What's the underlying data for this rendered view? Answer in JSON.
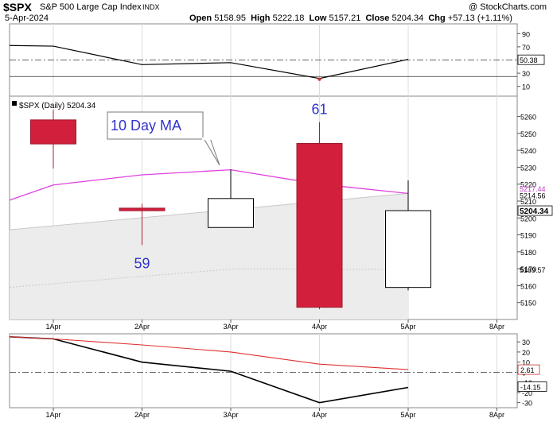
{
  "header": {
    "symbol": "$SPX",
    "name": "S&P 500 Large Cap Index",
    "exchange": "INDX",
    "date": "5-Apr-2024",
    "copyright": "@ StockCharts.com",
    "open_label": "Open",
    "open_value": "5158.95",
    "high_label": "High",
    "high_value": "5222.18",
    "low_label": "Low",
    "low_value": "5157.21",
    "close_label": "Close",
    "close_value": "5204.34",
    "chg_label": "Chg",
    "chg_value": "+57.13 (+1.11%)"
  },
  "chart_data": [
    {
      "type": "line",
      "panel": "top-indicator",
      "x": [
        "1Apr",
        "2Apr",
        "3Apr",
        "4Apr",
        "5Apr"
      ],
      "series": [
        {
          "values": [
            71,
            43,
            46,
            22,
            51
          ],
          "color": "#000000"
        }
      ],
      "ylim": [
        0,
        100
      ],
      "yticks": [
        10,
        30,
        50,
        70,
        90
      ],
      "reference_lines": [
        {
          "value": 50,
          "style": "dash-dot"
        },
        {
          "value": 25,
          "style": "solid"
        }
      ],
      "last_value_label": "50.38"
    },
    {
      "type": "candlestick",
      "panel": "price",
      "legend_label": "$SPX (Daily) 5204.34",
      "x": [
        "1Apr",
        "2Apr",
        "3Apr",
        "4Apr",
        "5Apr",
        "8Apr"
      ],
      "candles": [
        {
          "date": "1Apr",
          "open": 5257.97,
          "high": 5263.95,
          "low": 5229.2,
          "close": 5243.77,
          "color": "red"
        },
        {
          "date": "2Apr",
          "open": 5204.29,
          "high": 5208.34,
          "low": 5184.05,
          "close": 5205.81,
          "color": "red"
        },
        {
          "date": "3Apr",
          "open": 5194.37,
          "high": 5228.75,
          "low": 5194.37,
          "close": 5211.49,
          "color": "white"
        },
        {
          "date": "4Apr",
          "open": 5244.05,
          "high": 5256.59,
          "low": 5146.06,
          "close": 5147.21,
          "color": "red"
        },
        {
          "date": "5Apr",
          "open": 5158.95,
          "high": 5222.18,
          "low": 5157.21,
          "close": 5204.34,
          "color": "white"
        }
      ],
      "ma10": {
        "label": "10 Day MA",
        "values": [
          5210.5,
          5219.5,
          5225.5,
          5228.5,
          5220.0,
          5214.5
        ],
        "x_index": [
          -0.5,
          0,
          1,
          2,
          3,
          4
        ],
        "color": "#e040e0"
      },
      "ma_band_upper": [
        5193,
        5214.5
      ],
      "ma_band_lower": [
        5159,
        5169.6
      ],
      "annotations": [
        {
          "text": "59",
          "date": "2Apr",
          "y": 5176,
          "color": "#3333cc"
        },
        {
          "text": "61",
          "date": "4Apr",
          "y": 5267,
          "color": "#3333cc"
        }
      ],
      "ylim": [
        5140,
        5272
      ],
      "yticks": [
        5150,
        5160,
        5170,
        5180,
        5190,
        5200,
        5210,
        5220,
        5230,
        5240,
        5250,
        5260
      ],
      "price_labels": [
        "5217.44",
        "5214.56",
        "5204.34",
        "5169.57"
      ]
    },
    {
      "type": "line",
      "panel": "bottom-indicator",
      "x": [
        "1Apr",
        "2Apr",
        "3Apr",
        "4Apr",
        "5Apr"
      ],
      "series": [
        {
          "values": [
            33,
            10,
            1,
            -30,
            -15
          ],
          "color": "#000000"
        },
        {
          "values": [
            33,
            27,
            20,
            8,
            2.61
          ],
          "color": "#e03030"
        }
      ],
      "x_start_value": 35,
      "ylim": [
        -35,
        38
      ],
      "yticks": [
        -30,
        -20,
        -10,
        0,
        10,
        20,
        30
      ],
      "reference_lines": [
        {
          "value": 0,
          "style": "dash-dot"
        }
      ],
      "last_value_labels": [
        "2.61",
        "-14.15"
      ]
    }
  ]
}
